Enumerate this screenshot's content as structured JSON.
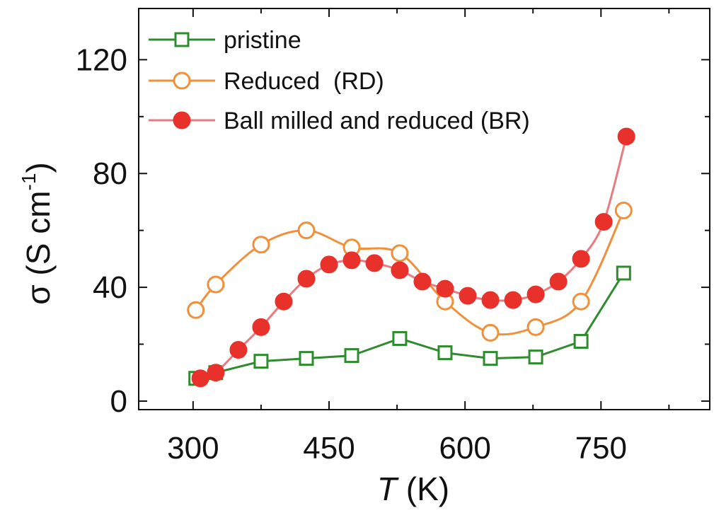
{
  "chart_data": {
    "type": "line",
    "xlabel_italic": "T",
    "xlabel_rest": " (K)",
    "ylabel_main": "σ (S cm",
    "ylabel_sup": "-1",
    "ylabel_close": ")",
    "xlim": [
      240,
      870
    ],
    "ylim": [
      -3,
      138
    ],
    "xticks": [
      300,
      450,
      600,
      750
    ],
    "xtick_labels": [
      "300",
      "450",
      "600",
      "750"
    ],
    "yticks": [
      0,
      40,
      80,
      120
    ],
    "ytick_labels": [
      "0",
      "40",
      "80",
      "120"
    ],
    "legend_position": "top-left",
    "grid": false,
    "series": [
      {
        "name": "pristine",
        "marker": "open-square",
        "color": "#2e8b2e",
        "x": [
          303,
          325,
          375,
          425,
          475,
          528,
          578,
          628,
          678,
          728,
          775
        ],
        "y": [
          8,
          10,
          14,
          15,
          16,
          22,
          17,
          15,
          15.5,
          21,
          45
        ]
      },
      {
        "name": "Reduced  (RD)",
        "marker": "open-circle",
        "color": "#f0903a",
        "x": [
          303,
          325,
          375,
          425,
          475,
          528,
          578,
          628,
          678,
          728,
          775
        ],
        "y": [
          32,
          41,
          55,
          60,
          54,
          52,
          35,
          24,
          26,
          35,
          67
        ]
      },
      {
        "name": "Ball milled and reduced (BR)",
        "marker": "filled-circle",
        "color": "#e8312a",
        "line_color": "#e87a80",
        "x": [
          308,
          325,
          350,
          375,
          400,
          425,
          450,
          475,
          500,
          528,
          553,
          578,
          603,
          628,
          653,
          678,
          703,
          728,
          753,
          778
        ],
        "y": [
          8,
          10,
          18,
          26,
          35,
          43,
          48,
          49.5,
          48.5,
          46,
          42,
          39.5,
          37,
          35.5,
          35.5,
          37.5,
          42,
          50,
          63,
          93
        ]
      }
    ]
  }
}
